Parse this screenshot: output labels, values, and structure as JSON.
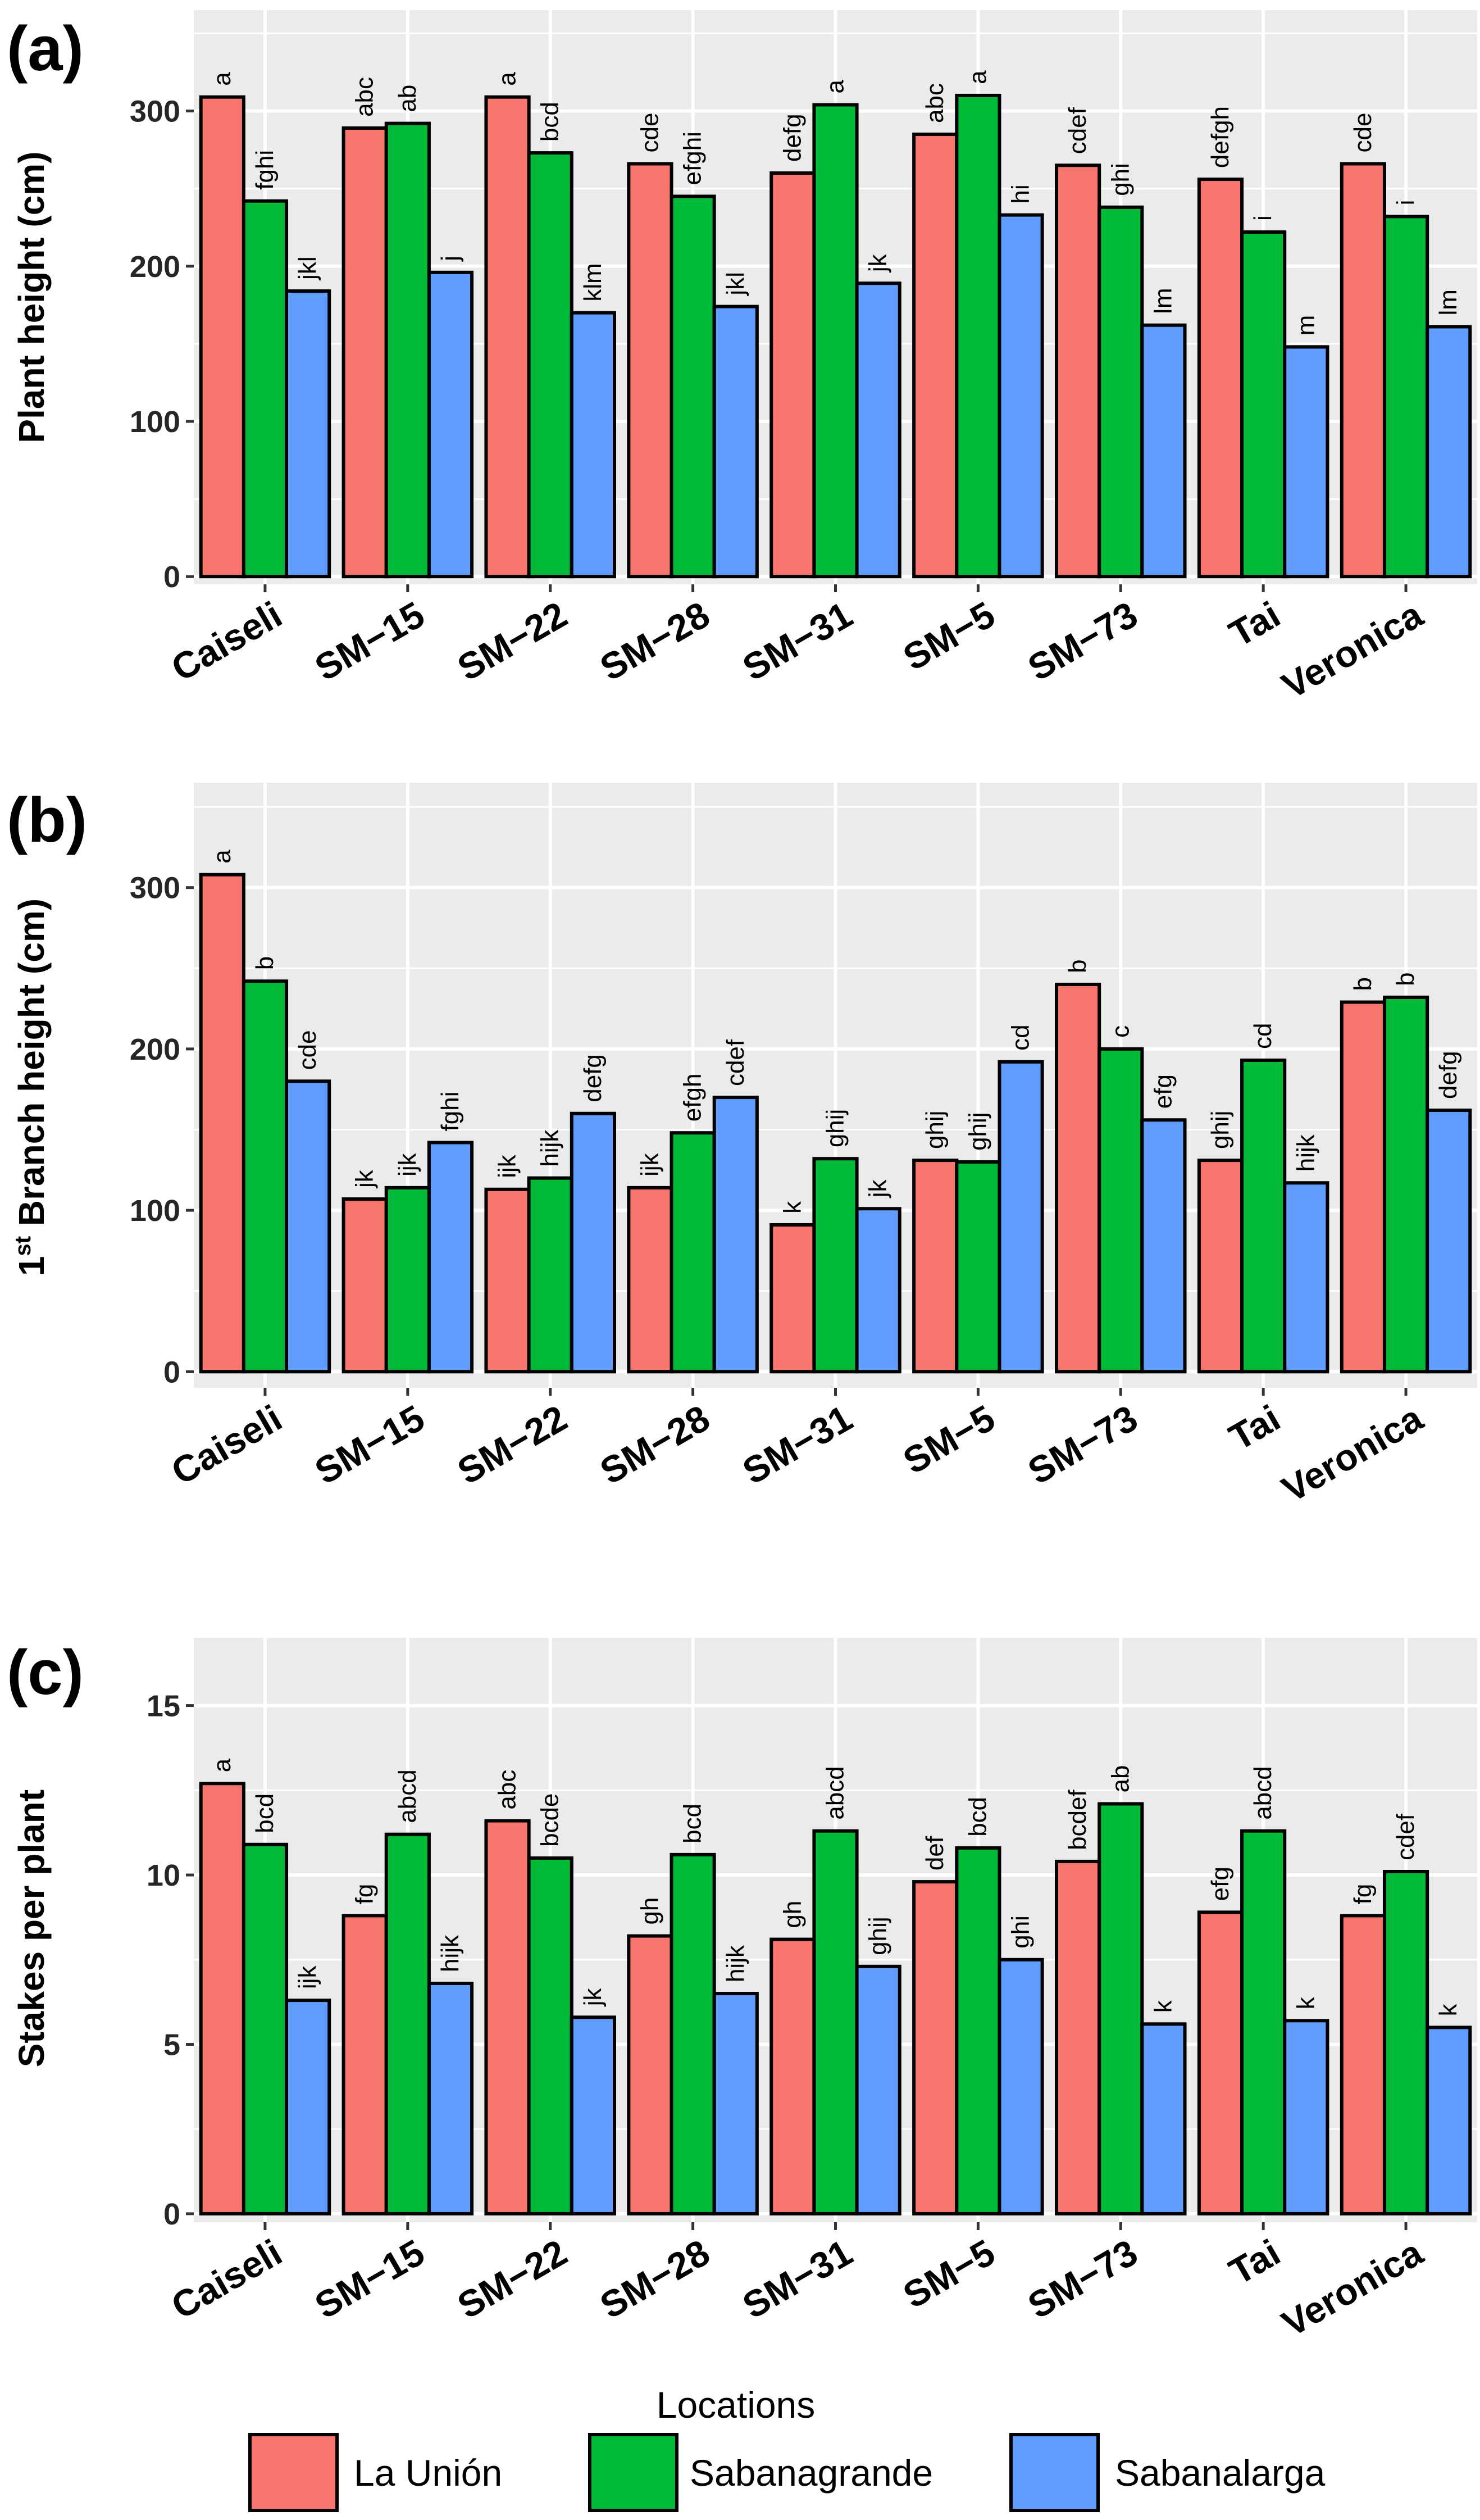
{
  "colors": {
    "panel_bg": "#EBEBEB",
    "grid": "#FFFFFF",
    "series": [
      "#F8766D",
      "#00BA38",
      "#619CFF"
    ]
  },
  "legend": {
    "title": "Locations",
    "items": [
      "La Unión",
      "Sabanagrande",
      "Sabanalarga"
    ]
  },
  "chart_data": [
    {
      "panel": "(a)",
      "type": "bar",
      "ylabel": "Plant height (cm)",
      "ylim": [
        -5,
        365
      ],
      "yticks": [
        "0",
        "100",
        "200",
        "300"
      ],
      "categories": [
        "Caiseli",
        "SM−15",
        "SM−22",
        "SM−28",
        "SM−31",
        "SM−5",
        "SM−73",
        "Tai",
        "Veronica"
      ],
      "series": [
        {
          "name": "La Unión",
          "values": [
            309,
            289,
            309,
            266,
            260,
            285,
            265,
            256,
            266
          ],
          "letters": [
            "a",
            "abc",
            "a",
            "cde",
            "defg",
            "abc",
            "cdef",
            "defgh",
            "cde"
          ]
        },
        {
          "name": "Sabanagrande",
          "values": [
            242,
            292,
            273,
            245,
            304,
            310,
            238,
            222,
            232
          ],
          "letters": [
            "fghi",
            "ab",
            "bcd",
            "efghi",
            "a",
            "a",
            "ghi",
            "i",
            "i"
          ]
        },
        {
          "name": "Sabanalarga",
          "values": [
            184,
            196,
            170,
            174,
            189,
            233,
            162,
            148,
            161
          ],
          "letters": [
            "jkl",
            "j",
            "klm",
            "jkl",
            "jk",
            "hi",
            "lm",
            "m",
            "lm"
          ]
        }
      ]
    },
    {
      "panel": "(b)",
      "type": "bar",
      "ylabel": "Branch height (cm)",
      "ylabel_prefix": "1",
      "ylabel_sup": "st",
      "ylim": [
        -10,
        365
      ],
      "yticks": [
        "0",
        "100",
        "200",
        "300"
      ],
      "categories": [
        "Caiseli",
        "SM−15",
        "SM−22",
        "SM−28",
        "SM−31",
        "SM−5",
        "SM−73",
        "Tai",
        "Veronica"
      ],
      "series": [
        {
          "name": "La Unión",
          "values": [
            308,
            107,
            113,
            114,
            91,
            131,
            240,
            131,
            229
          ],
          "letters": [
            "a",
            "jk",
            "ijk",
            "ijk",
            "k",
            "ghij",
            "b",
            "ghij",
            "b"
          ]
        },
        {
          "name": "Sabanagrande",
          "values": [
            242,
            114,
            120,
            148,
            132,
            130,
            200,
            193,
            232
          ],
          "letters": [
            "b",
            "ijk",
            "hijk",
            "efgh",
            "ghij",
            "ghij",
            "c",
            "cd",
            "b"
          ]
        },
        {
          "name": "Sabanalarga",
          "values": [
            180,
            142,
            160,
            170,
            101,
            192,
            156,
            117,
            162
          ],
          "letters": [
            "cde",
            "fghi",
            "defg",
            "cdef",
            "jk",
            "cd",
            "efg",
            "hijk",
            "defg"
          ]
        }
      ]
    },
    {
      "panel": "(c)",
      "type": "bar",
      "ylabel": "Stakes per plant",
      "ylim": [
        -0.25,
        17
      ],
      "yticks": [
        "0",
        "5",
        "10",
        "15"
      ],
      "categories": [
        "Caiseli",
        "SM−15",
        "SM−22",
        "SM−28",
        "SM−31",
        "SM−5",
        "SM−73",
        "Tai",
        "Veronica"
      ],
      "series": [
        {
          "name": "La Unión",
          "values": [
            12.7,
            8.8,
            11.6,
            8.2,
            8.1,
            9.8,
            10.4,
            8.9,
            8.8
          ],
          "letters": [
            "a",
            "fg",
            "abc",
            "gh",
            "gh",
            "def",
            "bcdef",
            "efg",
            "fg"
          ]
        },
        {
          "name": "Sabanagrande",
          "values": [
            10.9,
            11.2,
            10.5,
            10.6,
            11.3,
            10.8,
            12.1,
            11.3,
            10.1
          ],
          "letters": [
            "bcd",
            "abcd",
            "bcde",
            "bcd",
            "abcd",
            "bcd",
            "ab",
            "abcd",
            "cdef"
          ]
        },
        {
          "name": "Sabanalarga",
          "values": [
            6.3,
            6.8,
            5.8,
            6.5,
            7.3,
            7.5,
            5.6,
            5.7,
            5.5
          ],
          "letters": [
            "ijk",
            "hijk",
            "jk",
            "hijk",
            "ghij",
            "ghi",
            "k",
            "k",
            "k"
          ]
        }
      ]
    }
  ]
}
